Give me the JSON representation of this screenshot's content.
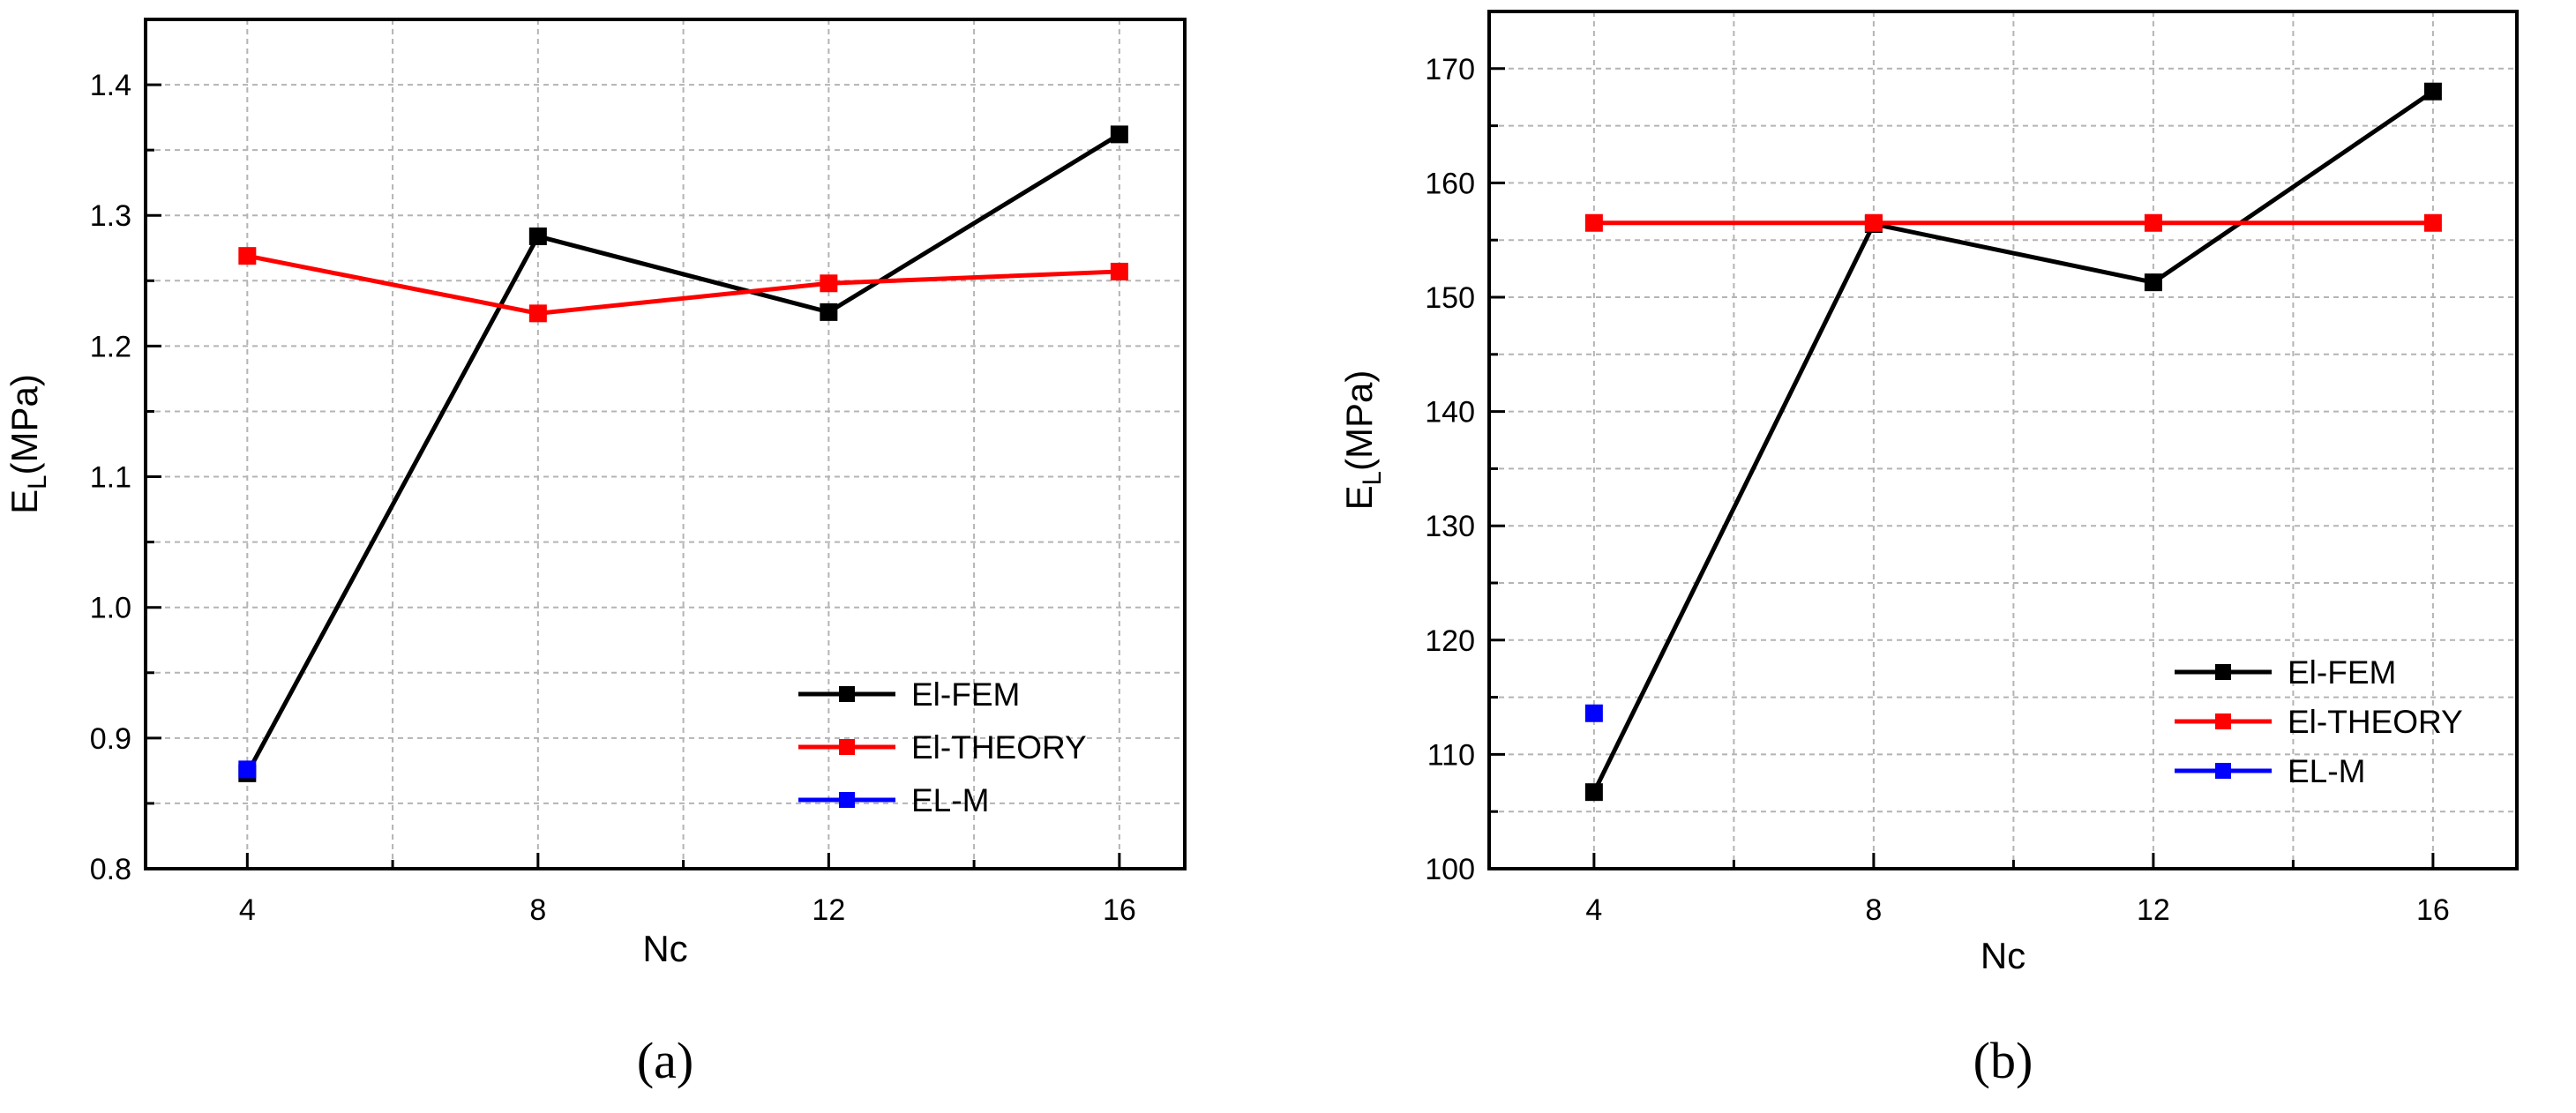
{
  "colors": {
    "fem": "#000000",
    "theory": "#ff0000",
    "m": "#0000ff",
    "grid": "#b4b4b4",
    "axis": "#000000"
  },
  "chart_data": [
    {
      "type": "line",
      "panel_caption": "(a)",
      "xlabel": "Nc",
      "ylabel_main": "E",
      "ylabel_sub": "L",
      "ylabel_tail": "(MPa)",
      "x_ticks": [
        4,
        8,
        12,
        16
      ],
      "x_tick_labels": [
        "4",
        "8",
        "12",
        "16"
      ],
      "xlim": [
        2.6,
        16.9
      ],
      "ylim": [
        0.8,
        1.45
      ],
      "y_ticks": [
        0.8,
        0.9,
        1.0,
        1.1,
        1.2,
        1.3,
        1.4
      ],
      "y_tick_labels": [
        "0.8",
        "0.9",
        "1.0",
        "1.1",
        "1.2",
        "1.3",
        "1.4"
      ],
      "grid": true,
      "legend_position": "bottom-right",
      "series": [
        {
          "name": "El-FEM",
          "color_key": "fem",
          "x": [
            4,
            8,
            12,
            16
          ],
          "y": [
            0.873,
            1.284,
            1.226,
            1.362
          ]
        },
        {
          "name": "El-THEORY",
          "color_key": "theory",
          "x": [
            4,
            8,
            12,
            16
          ],
          "y": [
            1.269,
            1.225,
            1.248,
            1.257
          ]
        },
        {
          "name": "EL-M",
          "color_key": "m",
          "x": [
            4
          ],
          "y": [
            0.876
          ]
        }
      ]
    },
    {
      "type": "line",
      "panel_caption": "(b)",
      "xlabel": "Nc",
      "ylabel_main": "E",
      "ylabel_sub": "L",
      "ylabel_tail": "(MPa)",
      "x_ticks": [
        4,
        8,
        12,
        16
      ],
      "x_tick_labels": [
        "4",
        "8",
        "12",
        "16"
      ],
      "xlim": [
        2.5,
        17.2
      ],
      "ylim": [
        100,
        175
      ],
      "y_ticks": [
        100,
        110,
        120,
        130,
        140,
        150,
        160,
        170
      ],
      "y_tick_labels": [
        "100",
        "110",
        "120",
        "130",
        "140",
        "150",
        "160",
        "170"
      ],
      "grid": true,
      "legend_position": "bottom-right",
      "series": [
        {
          "name": "El-FEM",
          "color_key": "fem",
          "x": [
            4,
            8,
            12,
            16
          ],
          "y": [
            106.7,
            156.4,
            151.3,
            168.0
          ]
        },
        {
          "name": "El-THEORY",
          "color_key": "theory",
          "x": [
            4,
            8,
            12,
            16
          ],
          "y": [
            156.5,
            156.5,
            156.5,
            156.5
          ]
        },
        {
          "name": "EL-M",
          "color_key": "m",
          "x": [
            4
          ],
          "y": [
            113.6
          ]
        }
      ]
    }
  ]
}
